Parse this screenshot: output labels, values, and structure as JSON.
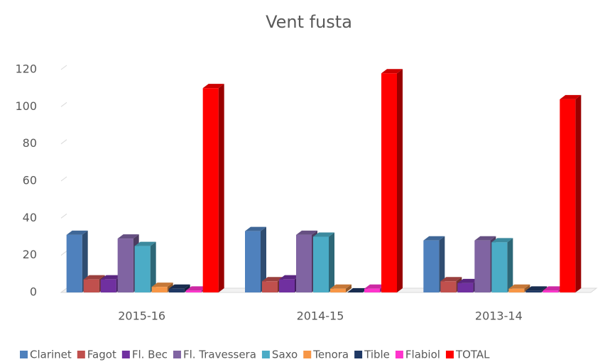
{
  "chart_data": {
    "type": "bar3d",
    "title": "Vent fusta",
    "categories": [
      "2015-16",
      "2014-15",
      "2013-14"
    ],
    "series": [
      {
        "name": "Clarinet",
        "color": "#4f81bd",
        "values": [
          31,
          33,
          28
        ]
      },
      {
        "name": "Fagot",
        "color": "#c0504d",
        "values": [
          7,
          6,
          6
        ]
      },
      {
        "name": "Fl. Bec",
        "color": "#7030a0",
        "values": [
          7,
          7,
          5
        ]
      },
      {
        "name": "Fl. Travessera",
        "color": "#8064a2",
        "values": [
          29,
          31,
          28
        ]
      },
      {
        "name": "Saxo",
        "color": "#4bacc6",
        "values": [
          25,
          30,
          27
        ]
      },
      {
        "name": "Tenora",
        "color": "#f79646",
        "values": [
          3,
          2,
          2
        ]
      },
      {
        "name": "Tible",
        "color": "#1f3864",
        "values": [
          2,
          0,
          1
        ]
      },
      {
        "name": "Flabiol",
        "color": "#ff33cc",
        "values": [
          1,
          2,
          1
        ]
      },
      {
        "name": "TOTAL",
        "color": "#ff0000",
        "values": [
          110,
          118,
          104
        ]
      }
    ],
    "ylim": [
      0,
      120
    ],
    "yticks": [
      0,
      20,
      40,
      60,
      80,
      100,
      120
    ],
    "grid": false,
    "legend": "bottom"
  }
}
